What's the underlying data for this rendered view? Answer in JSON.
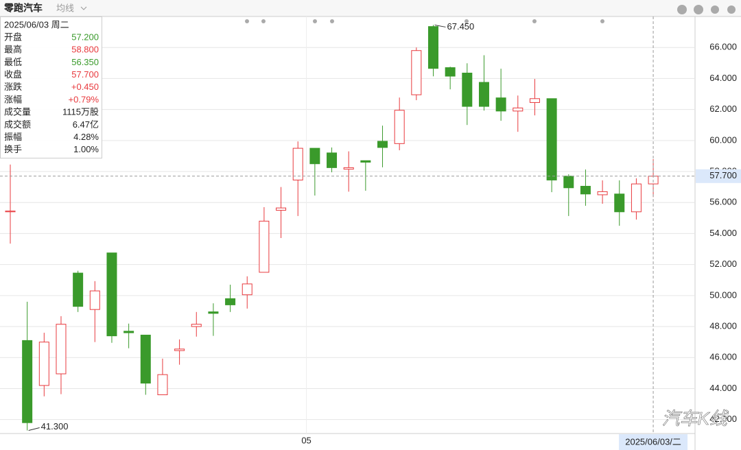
{
  "header": {
    "title": "零跑汽车",
    "indicator": "均线"
  },
  "info_panel": {
    "date": "2025/06/03 周二",
    "rows": [
      {
        "label": "开盘",
        "value": "57.200",
        "color": "#3a9a2b"
      },
      {
        "label": "最高",
        "value": "58.800",
        "color": "#e8393d"
      },
      {
        "label": "最低",
        "value": "56.350",
        "color": "#3a9a2b"
      },
      {
        "label": "收盘",
        "value": "57.700",
        "color": "#e8393d"
      },
      {
        "label": "涨跌",
        "value": "+0.450",
        "color": "#e8393d"
      },
      {
        "label": "涨幅",
        "value": "+0.79%",
        "color": "#e8393d"
      },
      {
        "label": "成交量",
        "value": "1115万股",
        "color": "#222222"
      },
      {
        "label": "成交额",
        "value": "6.47亿",
        "color": "#222222"
      },
      {
        "label": "振幅",
        "value": "4.28%",
        "color": "#222222"
      },
      {
        "label": "换手",
        "value": "1.00%",
        "color": "#222222"
      }
    ]
  },
  "watermark": "汽车K线",
  "chart_data": {
    "type": "candlestick",
    "up_color": "#e8393d",
    "down_color": "#3a9a2b",
    "categories": [
      null,
      null,
      null,
      null,
      null,
      null,
      null,
      null,
      null,
      null,
      null,
      null,
      null,
      null,
      null,
      null,
      null,
      null,
      "05",
      null,
      null,
      null,
      null,
      null,
      null,
      null,
      null,
      null,
      null,
      null,
      null,
      null,
      null,
      null,
      null,
      null,
      null,
      null,
      null
    ],
    "open": [
      55.4,
      47.1,
      44.2,
      44.95,
      51.45,
      49.1,
      52.75,
      47.7,
      47.45,
      43.6,
      46.45,
      48.0,
      48.95,
      49.8,
      50.05,
      51.5,
      55.5,
      57.45,
      59.5,
      59.2,
      58.15,
      58.7,
      59.95,
      59.8,
      62.95,
      67.35,
      64.7,
      64.35,
      63.75,
      62.75,
      61.9,
      62.45,
      62.7,
      57.7,
      57.05,
      56.5,
      56.55,
      55.4,
      57.2
    ],
    "high": [
      58.45,
      49.6,
      47.6,
      48.67,
      51.6,
      50.93,
      52.75,
      48.19,
      47.45,
      45.93,
      47.17,
      48.94,
      49.5,
      50.7,
      51.24,
      55.7,
      57.0,
      59.94,
      59.5,
      59.55,
      59.3,
      58.7,
      60.96,
      62.77,
      66.0,
      67.45,
      64.76,
      64.98,
      65.5,
      64.63,
      62.9,
      63.97,
      62.7,
      57.82,
      58.13,
      57.43,
      57.43,
      57.56,
      58.8
    ],
    "low": [
      53.35,
      41.3,
      43.5,
      43.64,
      48.94,
      47.0,
      46.95,
      46.6,
      43.6,
      43.6,
      45.54,
      47.35,
      47.4,
      48.94,
      49.16,
      51.5,
      53.71,
      55.13,
      56.45,
      57.95,
      56.7,
      56.76,
      58.27,
      59.37,
      62.6,
      64.14,
      63.3,
      61.0,
      61.93,
      61.27,
      60.56,
      61.62,
      56.67,
      55.13,
      55.79,
      55.92,
      54.5,
      54.9,
      56.35
    ],
    "close": [
      55.45,
      41.8,
      47.0,
      48.15,
      49.3,
      50.3,
      47.4,
      47.6,
      44.35,
      44.9,
      46.55,
      48.15,
      48.85,
      49.4,
      50.75,
      54.8,
      55.65,
      59.5,
      58.5,
      58.25,
      58.25,
      58.6,
      59.55,
      61.95,
      65.8,
      64.65,
      64.15,
      62.2,
      62.2,
      61.9,
      62.1,
      62.7,
      57.45,
      56.95,
      56.55,
      56.7,
      55.4,
      57.2,
      57.7
    ],
    "ylim": [
      41.1,
      68.0
    ],
    "yticks": [
      {
        "value": 42,
        "label": "42.000"
      },
      {
        "value": 44,
        "label": "44.000"
      },
      {
        "value": 46,
        "label": "46.000"
      },
      {
        "value": 48,
        "label": "48.000"
      },
      {
        "value": 50,
        "label": "50.000"
      },
      {
        "value": 52,
        "label": "52.000"
      },
      {
        "value": 54,
        "label": "54.000"
      },
      {
        "value": 56,
        "label": "56.000"
      },
      {
        "value": 58,
        "label": "58.000"
      },
      {
        "value": 60,
        "label": "60.000"
      },
      {
        "value": 62,
        "label": "62.000"
      },
      {
        "value": 64,
        "label": "64.000"
      },
      {
        "value": 66,
        "label": "66.000"
      }
    ],
    "grid": true,
    "annotations": [
      {
        "value": 67.45,
        "label": "67.450"
      },
      {
        "value": 41.3,
        "label": "41.300"
      }
    ],
    "crosshair": {
      "y": {
        "value": 57.7,
        "label": "57.700"
      },
      "x_label": "2025/06/03/二"
    }
  }
}
